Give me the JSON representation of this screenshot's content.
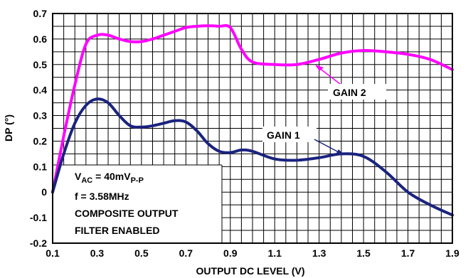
{
  "chart_data": {
    "type": "line",
    "xlabel": "OUTPUT DC LEVEL (V)",
    "ylabel": "DP (°)",
    "xlim": [
      0.1,
      1.9
    ],
    "ylim": [
      -0.2,
      0.7
    ],
    "x_ticks": [
      "0.1",
      "0.3",
      "0.5",
      "0.7",
      "0.9",
      "1.1",
      "1.3",
      "1.5",
      "1.7",
      "1.9"
    ],
    "y_ticks": [
      "0.7",
      "0.6",
      "0.5",
      "0.4",
      "0.3",
      "0.2",
      "0.1",
      "0",
      "-0.1",
      "-0.2"
    ],
    "grid": true,
    "series": [
      {
        "name": "GAIN 2",
        "color": "#ff00ff",
        "x": [
          0.1,
          0.15,
          0.2,
          0.25,
          0.3,
          0.35,
          0.4,
          0.45,
          0.5,
          0.55,
          0.6,
          0.65,
          0.7,
          0.75,
          0.8,
          0.85,
          0.9,
          0.95,
          1.0,
          1.1,
          1.2,
          1.3,
          1.4,
          1.5,
          1.6,
          1.7,
          1.8,
          1.9
        ],
        "y": [
          0.0,
          0.22,
          0.42,
          0.58,
          0.615,
          0.615,
          0.6,
          0.59,
          0.59,
          0.6,
          0.615,
          0.63,
          0.645,
          0.65,
          0.652,
          0.65,
          0.645,
          0.56,
          0.51,
          0.5,
          0.5,
          0.52,
          0.545,
          0.555,
          0.55,
          0.54,
          0.52,
          0.48
        ]
      },
      {
        "name": "GAIN 1",
        "color": "#1a237e",
        "x": [
          0.1,
          0.15,
          0.2,
          0.25,
          0.3,
          0.35,
          0.4,
          0.45,
          0.5,
          0.55,
          0.6,
          0.65,
          0.7,
          0.75,
          0.8,
          0.85,
          0.9,
          0.95,
          1.0,
          1.1,
          1.2,
          1.3,
          1.4,
          1.5,
          1.6,
          1.7,
          1.8,
          1.9
        ],
        "y": [
          0.0,
          0.15,
          0.27,
          0.34,
          0.365,
          0.35,
          0.3,
          0.26,
          0.255,
          0.26,
          0.27,
          0.28,
          0.275,
          0.24,
          0.19,
          0.16,
          0.155,
          0.165,
          0.16,
          0.13,
          0.125,
          0.135,
          0.15,
          0.14,
          0.08,
          0.0,
          -0.05,
          -0.09
        ]
      }
    ],
    "annotations": {
      "vac_main": "V",
      "vac_sub": "AC",
      "vac_eq": " = 40mV",
      "vac_unit_sub": "P-P",
      "freq": "f = 3.58MHz",
      "line3": "COMPOSITE OUTPUT",
      "line4": "FILTER ENABLED"
    }
  }
}
